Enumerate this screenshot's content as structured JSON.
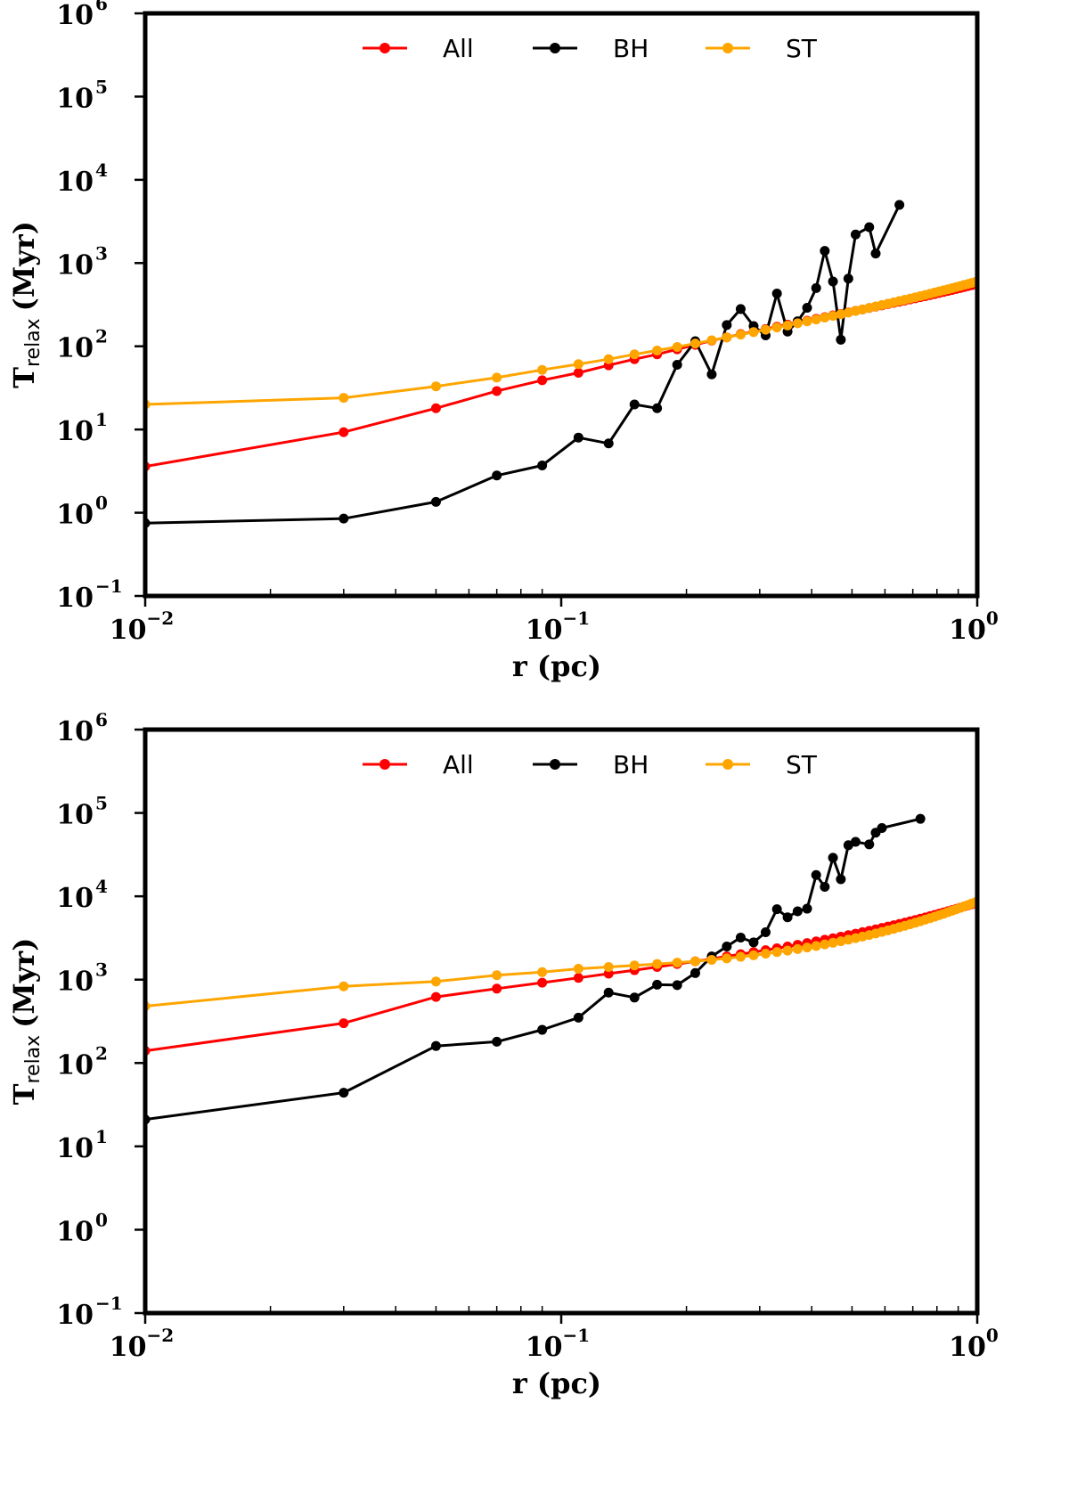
{
  "chart_data": [
    {
      "type": "line",
      "title": "",
      "xlabel": "r (pc)",
      "ylabel_main": "T",
      "ylabel_sub": "relax",
      "ylabel_unit": "(Myr)",
      "xscale": "log",
      "yscale": "log",
      "xlim": [
        0.01,
        1
      ],
      "ylim": [
        0.1,
        1000000
      ],
      "x_ticks": [
        {
          "base": "10",
          "exp": "−2",
          "value": 0.01
        },
        {
          "base": "10",
          "exp": "−1",
          "value": 0.1
        },
        {
          "base": "10",
          "exp": "0",
          "value": 1
        }
      ],
      "y_ticks": [
        {
          "base": "10",
          "exp": "−1",
          "value": 0.1
        },
        {
          "base": "10",
          "exp": "0",
          "value": 1
        },
        {
          "base": "10",
          "exp": "1",
          "value": 10
        },
        {
          "base": "10",
          "exp": "2",
          "value": 100
        },
        {
          "base": "10",
          "exp": "3",
          "value": 1000
        },
        {
          "base": "10",
          "exp": "4",
          "value": 10000
        },
        {
          "base": "10",
          "exp": "5",
          "value": 100000
        },
        {
          "base": "10",
          "exp": "6",
          "value": 1000000
        }
      ],
      "grid": false,
      "legend_position": "top-center",
      "series": [
        {
          "name": "All",
          "color": "#ff0000",
          "x": [
            0.01,
            0.03,
            0.05,
            0.07,
            0.09,
            0.11,
            0.13,
            0.15,
            0.17,
            0.19,
            0.21,
            0.23,
            0.25,
            0.27,
            0.29,
            0.31,
            0.33,
            0.35,
            0.37,
            0.39,
            0.41,
            0.43,
            0.45,
            0.47,
            0.49,
            0.51,
            0.53,
            0.55,
            0.57,
            0.59,
            0.61,
            0.63,
            0.65,
            0.67,
            0.69,
            0.71,
            0.73,
            0.75,
            0.77,
            0.79,
            0.81,
            0.83,
            0.85,
            0.87,
            0.89,
            0.91,
            0.93,
            0.95,
            0.97,
            0.99
          ],
          "y": [
            3.6,
            9.3,
            18,
            29,
            39,
            48,
            59,
            70,
            80,
            92,
            104,
            117,
            128,
            140,
            150,
            161,
            172,
            182,
            193,
            203,
            214,
            224,
            235,
            245,
            256,
            267,
            277,
            288,
            299,
            310,
            321,
            332,
            343,
            354,
            366,
            377,
            389,
            400,
            412,
            424,
            437,
            449,
            462,
            475,
            488,
            501,
            515,
            529,
            543,
            557
          ]
        },
        {
          "name": "BH",
          "color": "#000000",
          "x": [
            0.01,
            0.03,
            0.05,
            0.07,
            0.09,
            0.11,
            0.13,
            0.15,
            0.17,
            0.19,
            0.21,
            0.23,
            0.25,
            0.27,
            0.29,
            0.31,
            0.33,
            0.35,
            0.37,
            0.39,
            0.41,
            0.43,
            0.45,
            0.47,
            0.49,
            0.51,
            0.55,
            0.57,
            0.65
          ],
          "y": [
            0.75,
            0.85,
            1.35,
            2.8,
            3.7,
            8,
            6.8,
            20,
            18,
            60,
            115,
            46,
            180,
            280,
            175,
            135,
            430,
            150,
            200,
            290,
            500,
            1400,
            600,
            120,
            650,
            2200,
            2700,
            1300,
            5000
          ]
        },
        {
          "name": "ST",
          "color": "#ffa500",
          "x": [
            0.01,
            0.03,
            0.05,
            0.07,
            0.09,
            0.11,
            0.13,
            0.15,
            0.17,
            0.19,
            0.21,
            0.23,
            0.25,
            0.27,
            0.29,
            0.31,
            0.33,
            0.35,
            0.37,
            0.39,
            0.41,
            0.43,
            0.45,
            0.47,
            0.49,
            0.51,
            0.53,
            0.55,
            0.57,
            0.59,
            0.61,
            0.63,
            0.65,
            0.67,
            0.69,
            0.71,
            0.73,
            0.75,
            0.77,
            0.79,
            0.81,
            0.83,
            0.85,
            0.87,
            0.89,
            0.91,
            0.93,
            0.95,
            0.97,
            0.99
          ],
          "y": [
            20,
            24,
            33,
            42,
            52,
            61,
            70,
            80,
            89,
            98,
            108,
            118,
            128,
            138,
            148,
            158,
            168,
            178,
            189,
            199,
            210,
            221,
            232,
            243,
            254,
            266,
            277,
            289,
            301,
            313,
            325,
            337,
            350,
            362,
            375,
            388,
            401,
            414,
            428,
            442,
            456,
            470,
            484,
            499,
            514,
            529,
            545,
            561,
            577,
            593
          ]
        }
      ]
    },
    {
      "type": "line",
      "title": "",
      "xlabel": "r (pc)",
      "ylabel_main": "T",
      "ylabel_sub": "relax",
      "ylabel_unit": "(Myr)",
      "xscale": "log",
      "yscale": "log",
      "xlim": [
        0.01,
        1
      ],
      "ylim": [
        0.1,
        1000000
      ],
      "x_ticks": [
        {
          "base": "10",
          "exp": "−2",
          "value": 0.01
        },
        {
          "base": "10",
          "exp": "−1",
          "value": 0.1
        },
        {
          "base": "10",
          "exp": "0",
          "value": 1
        }
      ],
      "y_ticks": [
        {
          "base": "10",
          "exp": "−1",
          "value": 0.1
        },
        {
          "base": "10",
          "exp": "0",
          "value": 1
        },
        {
          "base": "10",
          "exp": "1",
          "value": 10
        },
        {
          "base": "10",
          "exp": "2",
          "value": 100
        },
        {
          "base": "10",
          "exp": "3",
          "value": 1000
        },
        {
          "base": "10",
          "exp": "4",
          "value": 10000
        },
        {
          "base": "10",
          "exp": "5",
          "value": 100000
        },
        {
          "base": "10",
          "exp": "6",
          "value": 1000000
        }
      ],
      "grid": false,
      "legend_position": "top-center",
      "series": [
        {
          "name": "All",
          "color": "#ff0000",
          "x": [
            0.01,
            0.03,
            0.05,
            0.07,
            0.09,
            0.11,
            0.13,
            0.15,
            0.17,
            0.19,
            0.21,
            0.23,
            0.25,
            0.27,
            0.29,
            0.31,
            0.33,
            0.35,
            0.37,
            0.39,
            0.41,
            0.43,
            0.45,
            0.47,
            0.49,
            0.51,
            0.53,
            0.55,
            0.57,
            0.59,
            0.61,
            0.63,
            0.65,
            0.67,
            0.69,
            0.71,
            0.73,
            0.75,
            0.77,
            0.79,
            0.81,
            0.83,
            0.85,
            0.87,
            0.89,
            0.91,
            0.93,
            0.95,
            0.97,
            0.99
          ],
          "y": [
            140,
            300,
            620,
            780,
            920,
            1050,
            1180,
            1300,
            1420,
            1540,
            1660,
            1780,
            1900,
            2020,
            2140,
            2260,
            2380,
            2500,
            2620,
            2750,
            2880,
            3010,
            3140,
            3280,
            3420,
            3560,
            3710,
            3860,
            4010,
            4170,
            4330,
            4500,
            4670,
            4840,
            5020,
            5200,
            5390,
            5580,
            5780,
            5980,
            6190,
            6400,
            6620,
            6840,
            7070,
            7300,
            7540,
            7780,
            8030,
            8280
          ]
        },
        {
          "name": "BH",
          "color": "#000000",
          "x": [
            0.01,
            0.03,
            0.05,
            0.07,
            0.09,
            0.11,
            0.13,
            0.15,
            0.17,
            0.19,
            0.21,
            0.23,
            0.25,
            0.27,
            0.29,
            0.31,
            0.33,
            0.35,
            0.37,
            0.39,
            0.41,
            0.43,
            0.45,
            0.47,
            0.49,
            0.51,
            0.55,
            0.57,
            0.59,
            0.73
          ],
          "y": [
            21,
            44,
            160,
            180,
            250,
            350,
            700,
            610,
            870,
            860,
            1200,
            1900,
            2500,
            3200,
            2800,
            3700,
            7000,
            5600,
            6600,
            7100,
            18000,
            13000,
            29000,
            16000,
            41000,
            45000,
            42000,
            58000,
            66000,
            85000
          ]
        },
        {
          "name": "ST",
          "color": "#ffa500",
          "x": [
            0.01,
            0.03,
            0.05,
            0.07,
            0.09,
            0.11,
            0.13,
            0.15,
            0.17,
            0.19,
            0.21,
            0.23,
            0.25,
            0.27,
            0.29,
            0.31,
            0.33,
            0.35,
            0.37,
            0.39,
            0.41,
            0.43,
            0.45,
            0.47,
            0.49,
            0.51,
            0.53,
            0.55,
            0.57,
            0.59,
            0.61,
            0.63,
            0.65,
            0.67,
            0.69,
            0.71,
            0.73,
            0.75,
            0.77,
            0.79,
            0.81,
            0.83,
            0.85,
            0.87,
            0.89,
            0.91,
            0.93,
            0.95,
            0.97,
            0.99
          ],
          "y": [
            480,
            830,
            950,
            1130,
            1230,
            1350,
            1420,
            1480,
            1540,
            1600,
            1660,
            1730,
            1800,
            1880,
            1960,
            2050,
            2140,
            2230,
            2330,
            2430,
            2540,
            2650,
            2770,
            2890,
            3020,
            3150,
            3290,
            3430,
            3580,
            3740,
            3900,
            4070,
            4250,
            4430,
            4620,
            4820,
            5030,
            5240,
            5460,
            5690,
            5930,
            6180,
            6440,
            6700,
            6980,
            7260,
            7560,
            7860,
            8180,
            8500
          ]
        }
      ]
    }
  ]
}
